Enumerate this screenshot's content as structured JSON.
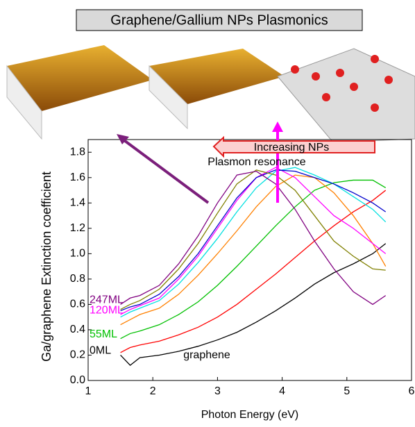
{
  "chart_data": {
    "type": "line",
    "title": "Graphene/Gallium NPs Plasmonics",
    "annotations": [
      "Increasing NPs",
      "Plasmon resonance",
      "graphene"
    ],
    "x_label": "Photon Energy (eV)",
    "y_label": "Ga/graphene Extinction coefficient",
    "x": [
      1.5,
      1.65,
      1.8,
      2.1,
      2.4,
      2.7,
      3.0,
      3.3,
      3.6,
      3.9,
      4.2,
      4.5,
      4.8,
      5.1,
      5.4,
      5.6
    ],
    "series": [
      {
        "name": "0ML",
        "color": "#000000",
        "values": [
          0.2,
          0.12,
          0.18,
          0.2,
          0.23,
          0.27,
          0.32,
          0.38,
          0.46,
          0.55,
          0.65,
          0.76,
          0.85,
          0.92,
          1.0,
          1.08
        ]
      },
      {
        "color": "#ff0000",
        "values": [
          0.22,
          0.26,
          0.28,
          0.31,
          0.36,
          0.42,
          0.5,
          0.6,
          0.72,
          0.84,
          0.97,
          1.1,
          1.22,
          1.33,
          1.42,
          1.5
        ]
      },
      {
        "name": "55ML",
        "color": "#00c000",
        "values": [
          0.33,
          0.37,
          0.39,
          0.44,
          0.52,
          0.62,
          0.75,
          0.9,
          1.06,
          1.22,
          1.37,
          1.5,
          1.56,
          1.58,
          1.58,
          1.52
        ]
      },
      {
        "color": "#ff8000",
        "values": [
          0.44,
          0.48,
          0.52,
          0.57,
          0.68,
          0.83,
          1.0,
          1.18,
          1.37,
          1.53,
          1.62,
          1.6,
          1.48,
          1.3,
          1.08,
          0.9
        ]
      },
      {
        "color": "#00e0e0",
        "values": [
          0.5,
          0.54,
          0.57,
          0.63,
          0.76,
          0.93,
          1.12,
          1.33,
          1.52,
          1.65,
          1.68,
          1.62,
          1.55,
          1.45,
          1.35,
          1.25
        ]
      },
      {
        "name": "120ML",
        "color": "#ff00ff",
        "values": [
          0.52,
          0.56,
          0.59,
          0.65,
          0.8,
          0.98,
          1.2,
          1.42,
          1.6,
          1.68,
          1.6,
          1.45,
          1.3,
          1.2,
          1.08,
          1.0
        ]
      },
      {
        "color": "#0000cc",
        "values": [
          0.55,
          0.58,
          0.6,
          0.68,
          0.82,
          1.0,
          1.22,
          1.44,
          1.6,
          1.66,
          1.65,
          1.6,
          1.55,
          1.48,
          1.4,
          1.33
        ]
      },
      {
        "color": "#808000",
        "values": [
          0.56,
          0.6,
          0.63,
          0.72,
          0.88,
          1.08,
          1.32,
          1.55,
          1.66,
          1.62,
          1.5,
          1.3,
          1.1,
          0.98,
          0.88,
          0.87
        ]
      },
      {
        "name": "247ML",
        "color": "#800080",
        "values": [
          0.6,
          0.65,
          0.67,
          0.75,
          0.92,
          1.14,
          1.4,
          1.62,
          1.65,
          1.55,
          1.35,
          1.1,
          0.88,
          0.7,
          0.6,
          0.67
        ]
      }
    ],
    "xlim": [
      1,
      6
    ],
    "xticks": [
      1,
      2,
      3,
      4,
      5,
      6
    ],
    "ylim": [
      0,
      1.9
    ],
    "yticks": [
      {
        "value": 0,
        "label": "0.0"
      },
      0.2,
      0.4,
      0.6,
      0.8,
      {
        "value": 1,
        "label": "1.0"
      },
      1.2,
      1.4,
      1.6,
      1.8
    ]
  }
}
